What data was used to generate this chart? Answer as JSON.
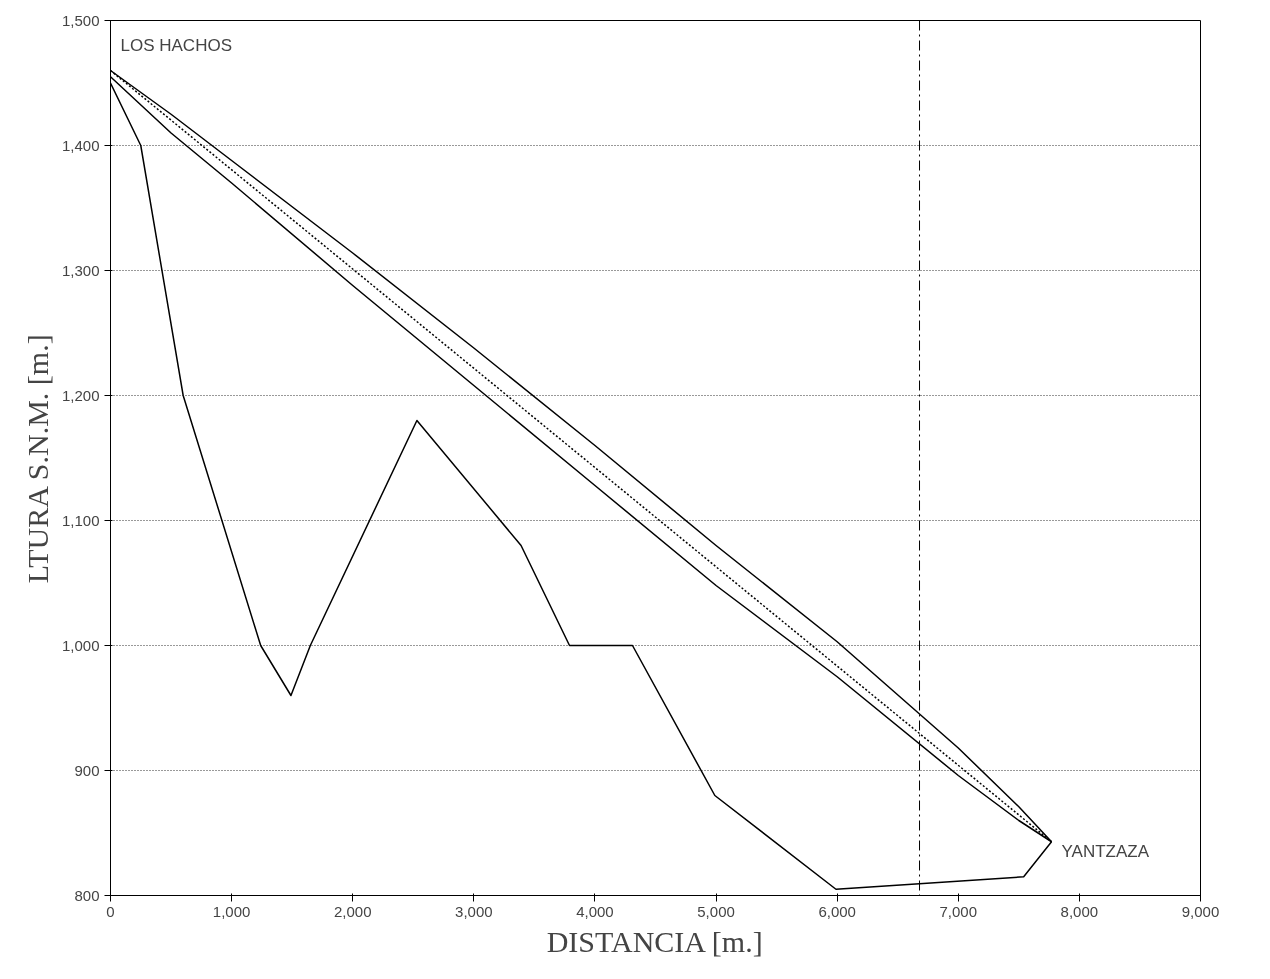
{
  "chart_data": {
    "type": "line",
    "xlabel": "DISTANCIA [m.]",
    "ylabel": "LTURA S.N.M. [m.]",
    "xlim": [
      0,
      9000
    ],
    "ylim": [
      800,
      1500
    ],
    "xticks": [
      0,
      {
        "value": 1000,
        "label": "1,000"
      },
      {
        "value": 2000,
        "label": "2,000"
      },
      {
        "value": 3000,
        "label": "3,000"
      },
      {
        "value": 4000,
        "label": "4,000"
      },
      {
        "value": 5000,
        "label": "5,000"
      },
      {
        "value": 6000,
        "label": "6,000"
      },
      {
        "value": 7000,
        "label": "7,000"
      },
      {
        "value": 8000,
        "label": "8,000"
      },
      {
        "value": 9000,
        "label": "9,000"
      }
    ],
    "yticks": [
      800,
      900,
      {
        "value": 1000,
        "label": "1,000"
      },
      {
        "value": 1100,
        "label": "1,100"
      },
      {
        "value": 1200,
        "label": "1,200"
      },
      {
        "value": 1300,
        "label": "1,300"
      },
      {
        "value": 1400,
        "label": "1,400"
      },
      {
        "value": 1500,
        "label": "1,500"
      }
    ],
    "grid": "y",
    "marker": "none",
    "series": [
      {
        "color": "#000000",
        "line_style": "solid",
        "x": [
          0,
          250,
          600,
          1240,
          1490,
          1650,
          2530,
          3390,
          3790,
          4310,
          4990,
          5990,
          7540,
          7770
        ],
        "values": [
          1450,
          1400,
          1200,
          1000,
          960,
          1000,
          1180,
          1080,
          1000,
          1000,
          880,
          805,
          815,
          843
        ]
      },
      {
        "color": "#000000",
        "line_style": "solid",
        "x": [
          0,
          500,
          1000,
          2000,
          3000,
          4000,
          5000,
          6000,
          7000,
          7500,
          7770
        ],
        "values": [
          1460,
          1425,
          1388,
          1314,
          1238,
          1160,
          1080,
          1003,
          918,
          871,
          843
        ]
      },
      {
        "color": "#000000",
        "line_style": "solid",
        "x": [
          0,
          500,
          1000,
          2000,
          3000,
          4000,
          5000,
          6000,
          7000,
          7500,
          7770
        ],
        "values": [
          1455,
          1410,
          1370,
          1288,
          1208,
          1128,
          1048,
          975,
          896,
          860,
          843
        ]
      },
      {
        "color": "#000000",
        "line_style": "dotted",
        "x": [
          0,
          7770
        ],
        "values": [
          1460,
          843
        ]
      }
    ],
    "ref_lines": [
      {
        "axis": "x",
        "value": 6680,
        "color": "#000000",
        "line_style": "dashdot"
      }
    ],
    "annotations": [
      {
        "text": "LOS HACHOS",
        "x": 0,
        "y": 1460
      },
      {
        "text": "YANTZAZA",
        "x": 7770,
        "y": 843
      }
    ]
  }
}
